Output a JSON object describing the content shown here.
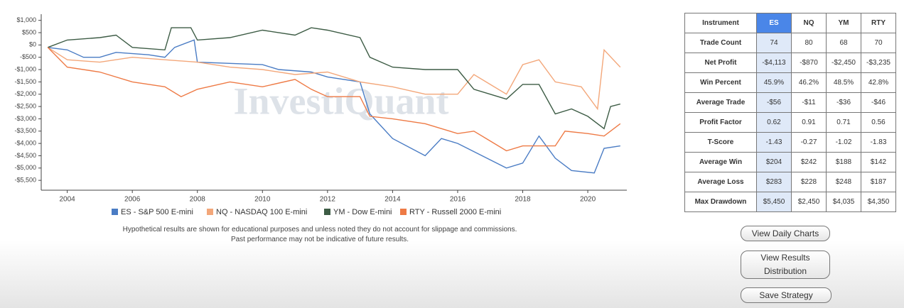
{
  "chart_data": {
    "type": "line",
    "watermark": "InvestiQuant",
    "xlim": [
      2003.2,
      2021.2
    ],
    "xticks": [
      2004,
      2006,
      2008,
      2010,
      2012,
      2014,
      2016,
      2018,
      2020
    ],
    "ylim": [
      -5900,
      1250
    ],
    "yticks": [
      {
        "value": 1000,
        "label": "$1,000"
      },
      {
        "value": 500,
        "label": "$500"
      },
      {
        "value": 0,
        "label": "$0"
      },
      {
        "value": -500,
        "label": "-$500"
      },
      {
        "value": -1000,
        "label": "-$1,000"
      },
      {
        "value": -1500,
        "label": "-$1,500"
      },
      {
        "value": -2000,
        "label": "-$2,000"
      },
      {
        "value": -2500,
        "label": "-$2,500"
      },
      {
        "value": -3000,
        "label": "-$3,000"
      },
      {
        "value": -3500,
        "label": "-$3,500"
      },
      {
        "value": -4000,
        "label": "-$4,000"
      },
      {
        "value": -4500,
        "label": "-$4,500"
      },
      {
        "value": -5000,
        "label": "-$5,000"
      },
      {
        "value": -5500,
        "label": "-$5,500"
      }
    ],
    "series": [
      {
        "name": "ES - S&P 500 E-mini",
        "color": "#4a7cc4",
        "x": [
          2003.4,
          2004,
          2004.5,
          2005,
          2005.5,
          2006.5,
          2007,
          2007.3,
          2007.9,
          2008,
          2010,
          2010.5,
          2011.5,
          2012,
          2013,
          2013.3,
          2014,
          2015,
          2015.5,
          2016,
          2017.5,
          2018,
          2018.5,
          2019,
          2019.5,
          2020.2,
          2020.5,
          2021
        ],
        "values": [
          -100,
          -200,
          -500,
          -500,
          -300,
          -400,
          -500,
          -100,
          200,
          -700,
          -800,
          -1000,
          -1100,
          -1300,
          -1500,
          -2800,
          -3800,
          -4500,
          -3800,
          -4000,
          -5000,
          -4800,
          -3700,
          -4600,
          -5100,
          -5200,
          -4200,
          -4100
        ]
      },
      {
        "name": "NQ - NASDAQ 100 E-mini",
        "color": "#f3a77a",
        "x": [
          2003.4,
          2004,
          2005,
          2006,
          2007,
          2008,
          2009,
          2010,
          2011,
          2012,
          2013,
          2014,
          2015,
          2016,
          2016.5,
          2017,
          2017.5,
          2018,
          2018.5,
          2019,
          2019.8,
          2020.3,
          2020.5,
          2021
        ],
        "values": [
          -100,
          -600,
          -700,
          -500,
          -600,
          -700,
          -900,
          -1000,
          -1200,
          -1100,
          -1500,
          -1700,
          -2000,
          -2000,
          -1200,
          -1600,
          -2000,
          -800,
          -600,
          -1500,
          -1700,
          -2600,
          -200,
          -900
        ]
      },
      {
        "name": "YM - Dow E-mini",
        "color": "#3d5c45",
        "x": [
          2003.4,
          2004,
          2005,
          2005.5,
          2006,
          2007,
          2007.2,
          2007.8,
          2008,
          2009,
          2010,
          2011,
          2011.5,
          2012,
          2013,
          2013.3,
          2014,
          2015,
          2016,
          2016.5,
          2017.5,
          2018,
          2018.5,
          2019,
          2019.5,
          2020,
          2020.5,
          2020.7,
          2021
        ],
        "values": [
          -100,
          200,
          300,
          400,
          -100,
          -200,
          700,
          700,
          200,
          300,
          600,
          400,
          700,
          600,
          300,
          -500,
          -900,
          -1000,
          -1000,
          -1800,
          -2200,
          -1600,
          -1600,
          -2800,
          -2600,
          -2900,
          -3400,
          -2500,
          -2400
        ]
      },
      {
        "name": "RTY - Russell 2000 E-mini",
        "color": "#ee7a45",
        "x": [
          2003.4,
          2004,
          2005,
          2006,
          2007,
          2007.5,
          2008,
          2009,
          2010,
          2011,
          2011.5,
          2012,
          2013,
          2013.3,
          2014,
          2015,
          2016,
          2016.5,
          2017,
          2017.5,
          2018,
          2019,
          2019.3,
          2020,
          2020.5,
          2021
        ],
        "values": [
          -100,
          -900,
          -1100,
          -1500,
          -1700,
          -2100,
          -1800,
          -1500,
          -1700,
          -1400,
          -1800,
          -2100,
          -2100,
          -2900,
          -3000,
          -3200,
          -3600,
          -3500,
          -3900,
          -4300,
          -4100,
          -4100,
          -3500,
          -3600,
          -3700,
          -3200
        ]
      }
    ]
  },
  "disclaimer": [
    "Hypothetical results are shown for educational purposes and unless noted they do not account for slippage and commissions.",
    "Past performance may not be indicative of future results."
  ],
  "table": {
    "header": [
      "Instrument",
      "ES",
      "NQ",
      "YM",
      "RTY"
    ],
    "rows": [
      [
        "Trade Count",
        "74",
        "80",
        "68",
        "70"
      ],
      [
        "Net Profit",
        "-$4,113",
        "-$870",
        "-$2,450",
        "-$3,235"
      ],
      [
        "Win Percent",
        "45.9%",
        "46.2%",
        "48.5%",
        "42.8%"
      ],
      [
        "Average Trade",
        "-$56",
        "-$11",
        "-$36",
        "-$46"
      ],
      [
        "Profit Factor",
        "0.62",
        "0.91",
        "0.71",
        "0.56"
      ],
      [
        "T-Score",
        "-1.43",
        "-0.27",
        "-1.02",
        "-1.83"
      ],
      [
        "Average Win",
        "$204",
        "$242",
        "$188",
        "$142"
      ],
      [
        "Average Loss",
        "$283",
        "$228",
        "$248",
        "$187"
      ],
      [
        "Max Drawdown",
        "$5,450",
        "$2,450",
        "$4,035",
        "$4,350"
      ]
    ]
  },
  "buttons": [
    "View Daily Charts",
    "View Results Distribution",
    "Save Strategy"
  ]
}
